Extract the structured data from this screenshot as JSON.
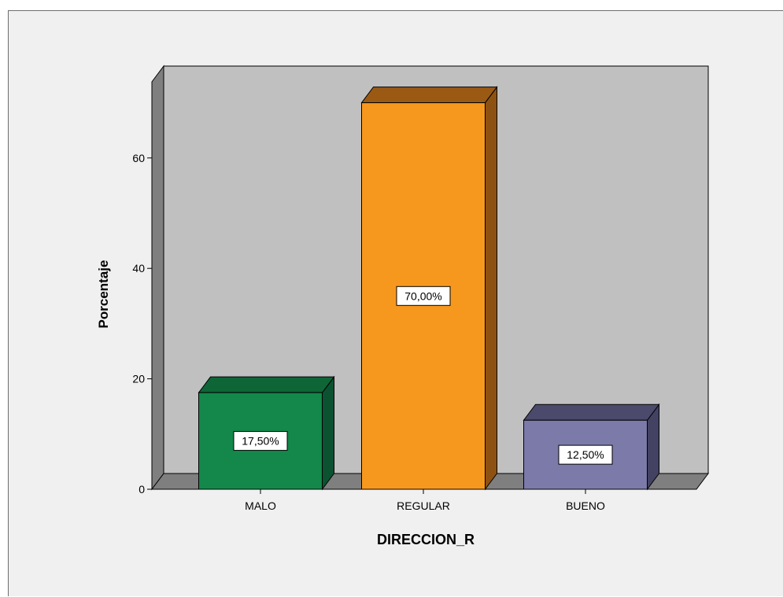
{
  "chart_data": {
    "type": "bar",
    "three_d": true,
    "categories": [
      "MALO",
      "REGULAR",
      "BUENO"
    ],
    "values": [
      17.5,
      70.0,
      12.5
    ],
    "data_labels": [
      "17,50%",
      "70,00%",
      "12,50%"
    ],
    "xlabel": "DIRECCION_R",
    "ylabel": "Porcentaje",
    "ylim": [
      0,
      72
    ],
    "yticks": [
      0,
      20,
      40,
      60
    ],
    "ytick_labels": [
      "0",
      "20",
      "40",
      "60"
    ],
    "grid": false,
    "legend": "none",
    "colors": {
      "bars": [
        "#13884a",
        "#f7981e",
        "#7b7aa8"
      ],
      "bar_tops": [
        "#0e6637",
        "#9a5a14",
        "#4b4a6c"
      ],
      "bar_sides": [
        "#0b5230",
        "#8d5212",
        "#434262"
      ],
      "back_wall": "#c0c0c0",
      "side_wall": "#7f7f7f",
      "floor": "#7f7f7f",
      "background": "#f0f0f0"
    }
  }
}
